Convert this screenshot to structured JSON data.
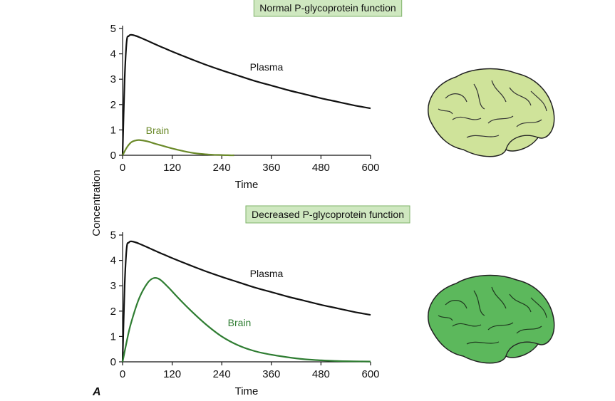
{
  "panel_letter": "A",
  "shared_ylabel": "Concentration",
  "colors": {
    "plasma_line": "#111111",
    "brain_line_normal": "#6b8a2a",
    "brain_line_decreased": "#2f7d32",
    "title_box_fill": "#cfe8c0",
    "title_box_stroke": "#7fb36a",
    "brain_fill_normal": "#cfe39a",
    "brain_fill_decreased": "#5cb85c"
  },
  "icons": [
    "brain-illustration-light",
    "brain-illustration-dark"
  ],
  "chart_data": [
    {
      "type": "line",
      "title": "Normal P-glycoprotein function",
      "xlabel": "Time",
      "ylabel": "Concentration",
      "xlim": [
        0,
        600
      ],
      "ylim": [
        0,
        5
      ],
      "xticks": [
        0,
        120,
        240,
        360,
        480,
        600
      ],
      "yticks": [
        0,
        1,
        2,
        3,
        4,
        5
      ],
      "grid": false,
      "series": [
        {
          "name": "Plasma",
          "color": "#111111",
          "x": [
            0,
            5,
            10,
            15,
            20,
            30,
            40,
            60,
            80,
            100,
            120,
            160,
            200,
            240,
            280,
            320,
            360,
            400,
            440,
            480,
            520,
            560,
            600
          ],
          "y": [
            0.0,
            3.0,
            4.5,
            4.7,
            4.75,
            4.72,
            4.66,
            4.52,
            4.37,
            4.23,
            4.09,
            3.83,
            3.58,
            3.35,
            3.14,
            2.93,
            2.75,
            2.57,
            2.41,
            2.25,
            2.11,
            1.97,
            1.85
          ]
        },
        {
          "name": "Brain",
          "color": "#6b8a2a",
          "x": [
            0,
            10,
            20,
            30,
            40,
            60,
            80,
            100,
            120,
            140,
            160,
            180,
            200,
            220,
            240,
            260,
            270
          ],
          "y": [
            0.0,
            0.3,
            0.5,
            0.58,
            0.6,
            0.55,
            0.45,
            0.36,
            0.27,
            0.19,
            0.12,
            0.07,
            0.04,
            0.02,
            0.01,
            0.0,
            0.0
          ]
        }
      ]
    },
    {
      "type": "line",
      "title": "Decreased P-glycoprotein function",
      "xlabel": "Time",
      "ylabel": "Concentration",
      "xlim": [
        0,
        600
      ],
      "ylim": [
        0,
        5
      ],
      "xticks": [
        0,
        120,
        240,
        360,
        480,
        600
      ],
      "yticks": [
        0,
        1,
        2,
        3,
        4,
        5
      ],
      "grid": false,
      "series": [
        {
          "name": "Plasma",
          "color": "#111111",
          "x": [
            0,
            5,
            10,
            15,
            20,
            30,
            40,
            60,
            80,
            100,
            120,
            160,
            200,
            240,
            280,
            320,
            360,
            400,
            440,
            480,
            520,
            560,
            600
          ],
          "y": [
            0.0,
            3.0,
            4.5,
            4.7,
            4.75,
            4.72,
            4.66,
            4.52,
            4.37,
            4.23,
            4.09,
            3.83,
            3.58,
            3.35,
            3.14,
            2.93,
            2.75,
            2.57,
            2.41,
            2.25,
            2.11,
            1.97,
            1.85
          ]
        },
        {
          "name": "Brain",
          "color": "#2f7d32",
          "x": [
            0,
            10,
            20,
            40,
            60,
            75,
            90,
            110,
            130,
            160,
            200,
            240,
            280,
            320,
            360,
            400,
            440,
            480,
            520,
            560,
            600
          ],
          "y": [
            0.0,
            0.8,
            1.5,
            2.5,
            3.1,
            3.3,
            3.25,
            2.95,
            2.6,
            2.1,
            1.5,
            1.0,
            0.65,
            0.42,
            0.28,
            0.18,
            0.1,
            0.06,
            0.03,
            0.02,
            0.01
          ]
        }
      ]
    }
  ]
}
